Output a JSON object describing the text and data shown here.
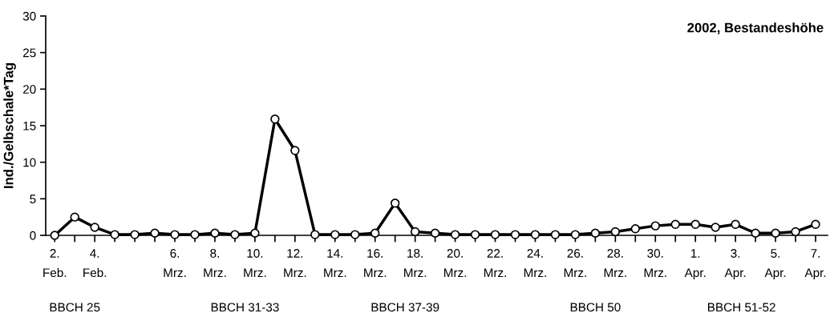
{
  "chart_data": {
    "type": "line",
    "title": "2002, Bestandeshöhe",
    "ylabel": "Ind./Gelbschale*Tag",
    "categories": [
      "2.\nFeb.",
      null,
      "4.\nFeb.",
      null,
      null,
      null,
      "6.\nMrz.",
      null,
      "8.\nMrz.",
      null,
      "10.\nMrz.",
      null,
      "12.\nMrz.",
      null,
      "14.\nMrz.",
      null,
      "16.\nMrz.",
      null,
      "18.\nMrz.",
      null,
      "20.\nMrz.",
      null,
      "22.\nMrz.",
      null,
      "24.\nMrz.",
      null,
      "26.\nMrz.",
      null,
      "28.\nMrz.",
      null,
      "30.\nMrz.",
      null,
      "1.\nApr.",
      null,
      "3.\nApr.",
      null,
      "5.\nApr.",
      null,
      "7.\nApr."
    ],
    "series": [
      {
        "color": "#000000",
        "values": [
          0,
          2.5,
          1.1,
          0.1,
          0.1,
          0.3,
          0.1,
          0.1,
          0.3,
          0.1,
          0.3,
          15.9,
          11.6,
          0.1,
          0.1,
          0.1,
          0.3,
          4.4,
          0.5,
          0.3,
          0.1,
          0.1,
          0.1,
          0.1,
          0.1,
          0.1,
          0.1,
          0.3,
          0.5,
          0.9,
          1.3,
          1.5,
          1.5,
          1.1,
          1.5,
          0.3,
          0.3,
          0.5,
          1.5
        ]
      }
    ],
    "annotations": [
      "BBCH 25",
      "BBCH 31-33",
      "BBCH 37-39",
      "BBCH 50",
      "BBCH 51-52"
    ],
    "ylim": [
      0,
      30
    ],
    "yticks": [
      0,
      5,
      10,
      15,
      20,
      25,
      30
    ],
    "grid": false,
    "legend": false,
    "marker": "circle",
    "line_style": "solid"
  }
}
